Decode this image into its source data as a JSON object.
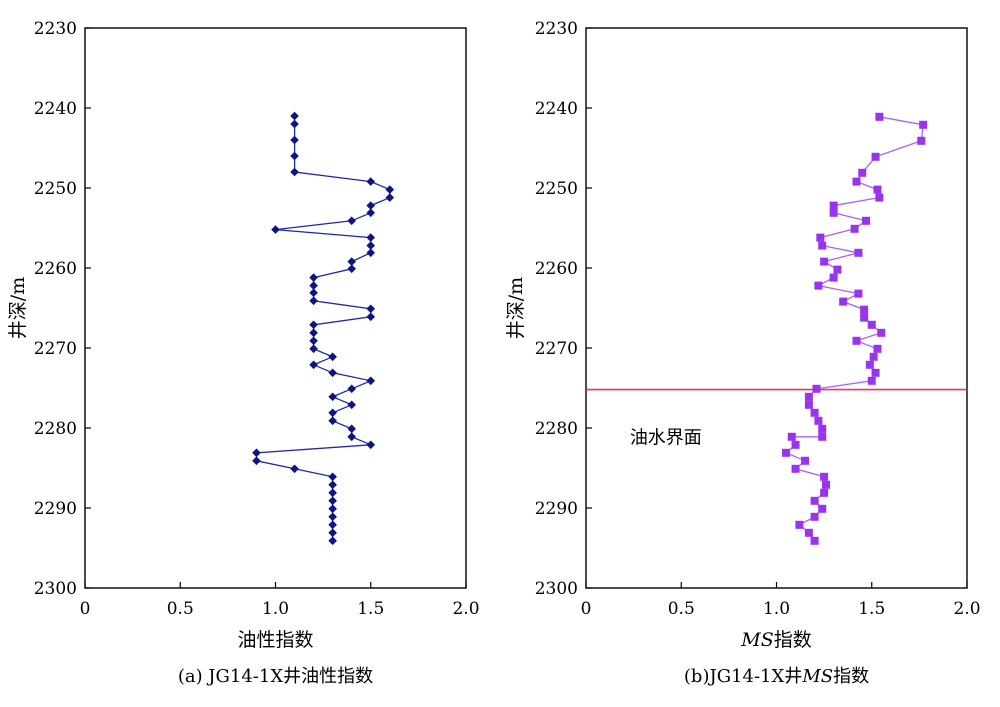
{
  "chart_data": [
    {
      "type": "scatter",
      "id": "a",
      "xlabel": "油性指数",
      "ylabel": "井深/m",
      "caption": "(a) JG14-1X井油性指数",
      "xlim": [
        0,
        2.0
      ],
      "ylim": [
        2300,
        2230
      ],
      "y_inverted": true,
      "xticks": [
        "0",
        "0.5",
        "1.0",
        "1.5",
        "2.0"
      ],
      "yticks": [
        "2230",
        "2240",
        "2250",
        "2260",
        "2270",
        "2280",
        "2290",
        "2300"
      ],
      "xtick_values": [
        0,
        0.5,
        1.0,
        1.5,
        2.0
      ],
      "ytick_values": [
        2230,
        2240,
        2250,
        2260,
        2270,
        2280,
        2290,
        2300
      ],
      "marker": "diamond",
      "color": "#1e2aa8",
      "marker_color": "#0d1580",
      "series": [
        {
          "points": [
            [
              1.1,
              2241
            ],
            [
              1.1,
              2242
            ],
            [
              1.1,
              2244
            ],
            [
              1.1,
              2246
            ],
            [
              1.1,
              2248
            ],
            [
              1.5,
              2249.2
            ],
            [
              1.6,
              2250.2
            ],
            [
              1.6,
              2251.2
            ],
            [
              1.5,
              2252.2
            ],
            [
              1.5,
              2253.1
            ],
            [
              1.4,
              2254.1
            ],
            [
              1.0,
              2255.2
            ],
            [
              1.5,
              2256.2
            ],
            [
              1.5,
              2257.2
            ],
            [
              1.5,
              2258.1
            ],
            [
              1.4,
              2259.2
            ],
            [
              1.4,
              2260.1
            ],
            [
              1.2,
              2261.2
            ],
            [
              1.2,
              2262.2
            ],
            [
              1.2,
              2263.1
            ],
            [
              1.2,
              2264.1
            ],
            [
              1.5,
              2265.1
            ],
            [
              1.5,
              2266.1
            ],
            [
              1.2,
              2267.1
            ],
            [
              1.2,
              2268.1
            ],
            [
              1.2,
              2269.1
            ],
            [
              1.2,
              2270.1
            ],
            [
              1.3,
              2271.1
            ],
            [
              1.2,
              2272.1
            ],
            [
              1.3,
              2273.1
            ],
            [
              1.5,
              2274.1
            ],
            [
              1.4,
              2275.1
            ],
            [
              1.3,
              2276.1
            ],
            [
              1.4,
              2277.1
            ],
            [
              1.3,
              2278.1
            ],
            [
              1.3,
              2279.1
            ],
            [
              1.4,
              2280.1
            ],
            [
              1.4,
              2281.1
            ],
            [
              1.5,
              2282.1
            ],
            [
              0.9,
              2283.1
            ],
            [
              0.9,
              2284.1
            ],
            [
              1.1,
              2285.1
            ],
            [
              1.3,
              2286.1
            ],
            [
              1.3,
              2287.1
            ],
            [
              1.3,
              2288.1
            ],
            [
              1.3,
              2289.1
            ],
            [
              1.3,
              2290.1
            ],
            [
              1.3,
              2291.1
            ],
            [
              1.3,
              2292.1
            ],
            [
              1.3,
              2293.1
            ],
            [
              1.3,
              2294.1
            ]
          ]
        }
      ]
    },
    {
      "type": "scatter",
      "id": "b",
      "xlabel_italic": "MS",
      "xlabel_rest": "指数",
      "ylabel": "井深/m",
      "caption_prefix": "(b)JG14-1X井",
      "caption_italic": "MS",
      "caption_suffix": "指数",
      "xlim": [
        0,
        2.0
      ],
      "ylim": [
        2300,
        2230
      ],
      "y_inverted": true,
      "xticks": [
        "0",
        "0.5",
        "1.0",
        "1.5",
        "2.0"
      ],
      "yticks": [
        "2230",
        "2240",
        "2250",
        "2260",
        "2270",
        "2280",
        "2290",
        "2300"
      ],
      "xtick_values": [
        0,
        0.5,
        1.0,
        1.5,
        2.0
      ],
      "ytick_values": [
        2230,
        2240,
        2250,
        2260,
        2270,
        2280,
        2290,
        2300
      ],
      "marker": "square",
      "color": "#b060ee",
      "marker_color": "#9933ee",
      "hline": {
        "y": 2275.2,
        "color": "#ee3366",
        "label": "油水界面",
        "label_x": 0.23,
        "label_y": 2281.2
      },
      "series": [
        {
          "points": [
            [
              1.54,
              2241.1
            ],
            [
              1.77,
              2242.1
            ],
            [
              1.76,
              2244.1
            ],
            [
              1.52,
              2246.1
            ],
            [
              1.45,
              2248.1
            ],
            [
              1.42,
              2249.2
            ],
            [
              1.53,
              2250.2
            ],
            [
              1.54,
              2251.2
            ],
            [
              1.3,
              2252.2
            ],
            [
              1.3,
              2253.1
            ],
            [
              1.47,
              2254.1
            ],
            [
              1.41,
              2255.1
            ],
            [
              1.23,
              2256.2
            ],
            [
              1.24,
              2257.2
            ],
            [
              1.43,
              2258.1
            ],
            [
              1.25,
              2259.2
            ],
            [
              1.32,
              2260.2
            ],
            [
              1.3,
              2261.2
            ],
            [
              1.22,
              2262.2
            ],
            [
              1.43,
              2263.2
            ],
            [
              1.35,
              2264.2
            ],
            [
              1.46,
              2265.2
            ],
            [
              1.46,
              2266.2
            ],
            [
              1.5,
              2267.1
            ],
            [
              1.55,
              2268.1
            ],
            [
              1.42,
              2269.1
            ],
            [
              1.53,
              2270.1
            ],
            [
              1.51,
              2271.1
            ],
            [
              1.49,
              2272.1
            ],
            [
              1.52,
              2273.1
            ],
            [
              1.5,
              2274.1
            ],
            [
              1.21,
              2275.1
            ],
            [
              1.17,
              2276.1
            ],
            [
              1.17,
              2277.1
            ],
            [
              1.2,
              2278.1
            ],
            [
              1.22,
              2279.1
            ],
            [
              1.24,
              2280.1
            ],
            [
              1.24,
              2281.1
            ],
            [
              1.08,
              2281.1
            ],
            [
              1.1,
              2282.1
            ],
            [
              1.05,
              2283.1
            ],
            [
              1.15,
              2284.1
            ],
            [
              1.1,
              2285.1
            ],
            [
              1.25,
              2286.1
            ],
            [
              1.26,
              2287.1
            ],
            [
              1.25,
              2288.1
            ],
            [
              1.2,
              2289.1
            ],
            [
              1.24,
              2290.1
            ],
            [
              1.2,
              2291.1
            ],
            [
              1.12,
              2292.1
            ],
            [
              1.17,
              2293.1
            ],
            [
              1.2,
              2294.1
            ]
          ]
        }
      ]
    }
  ]
}
